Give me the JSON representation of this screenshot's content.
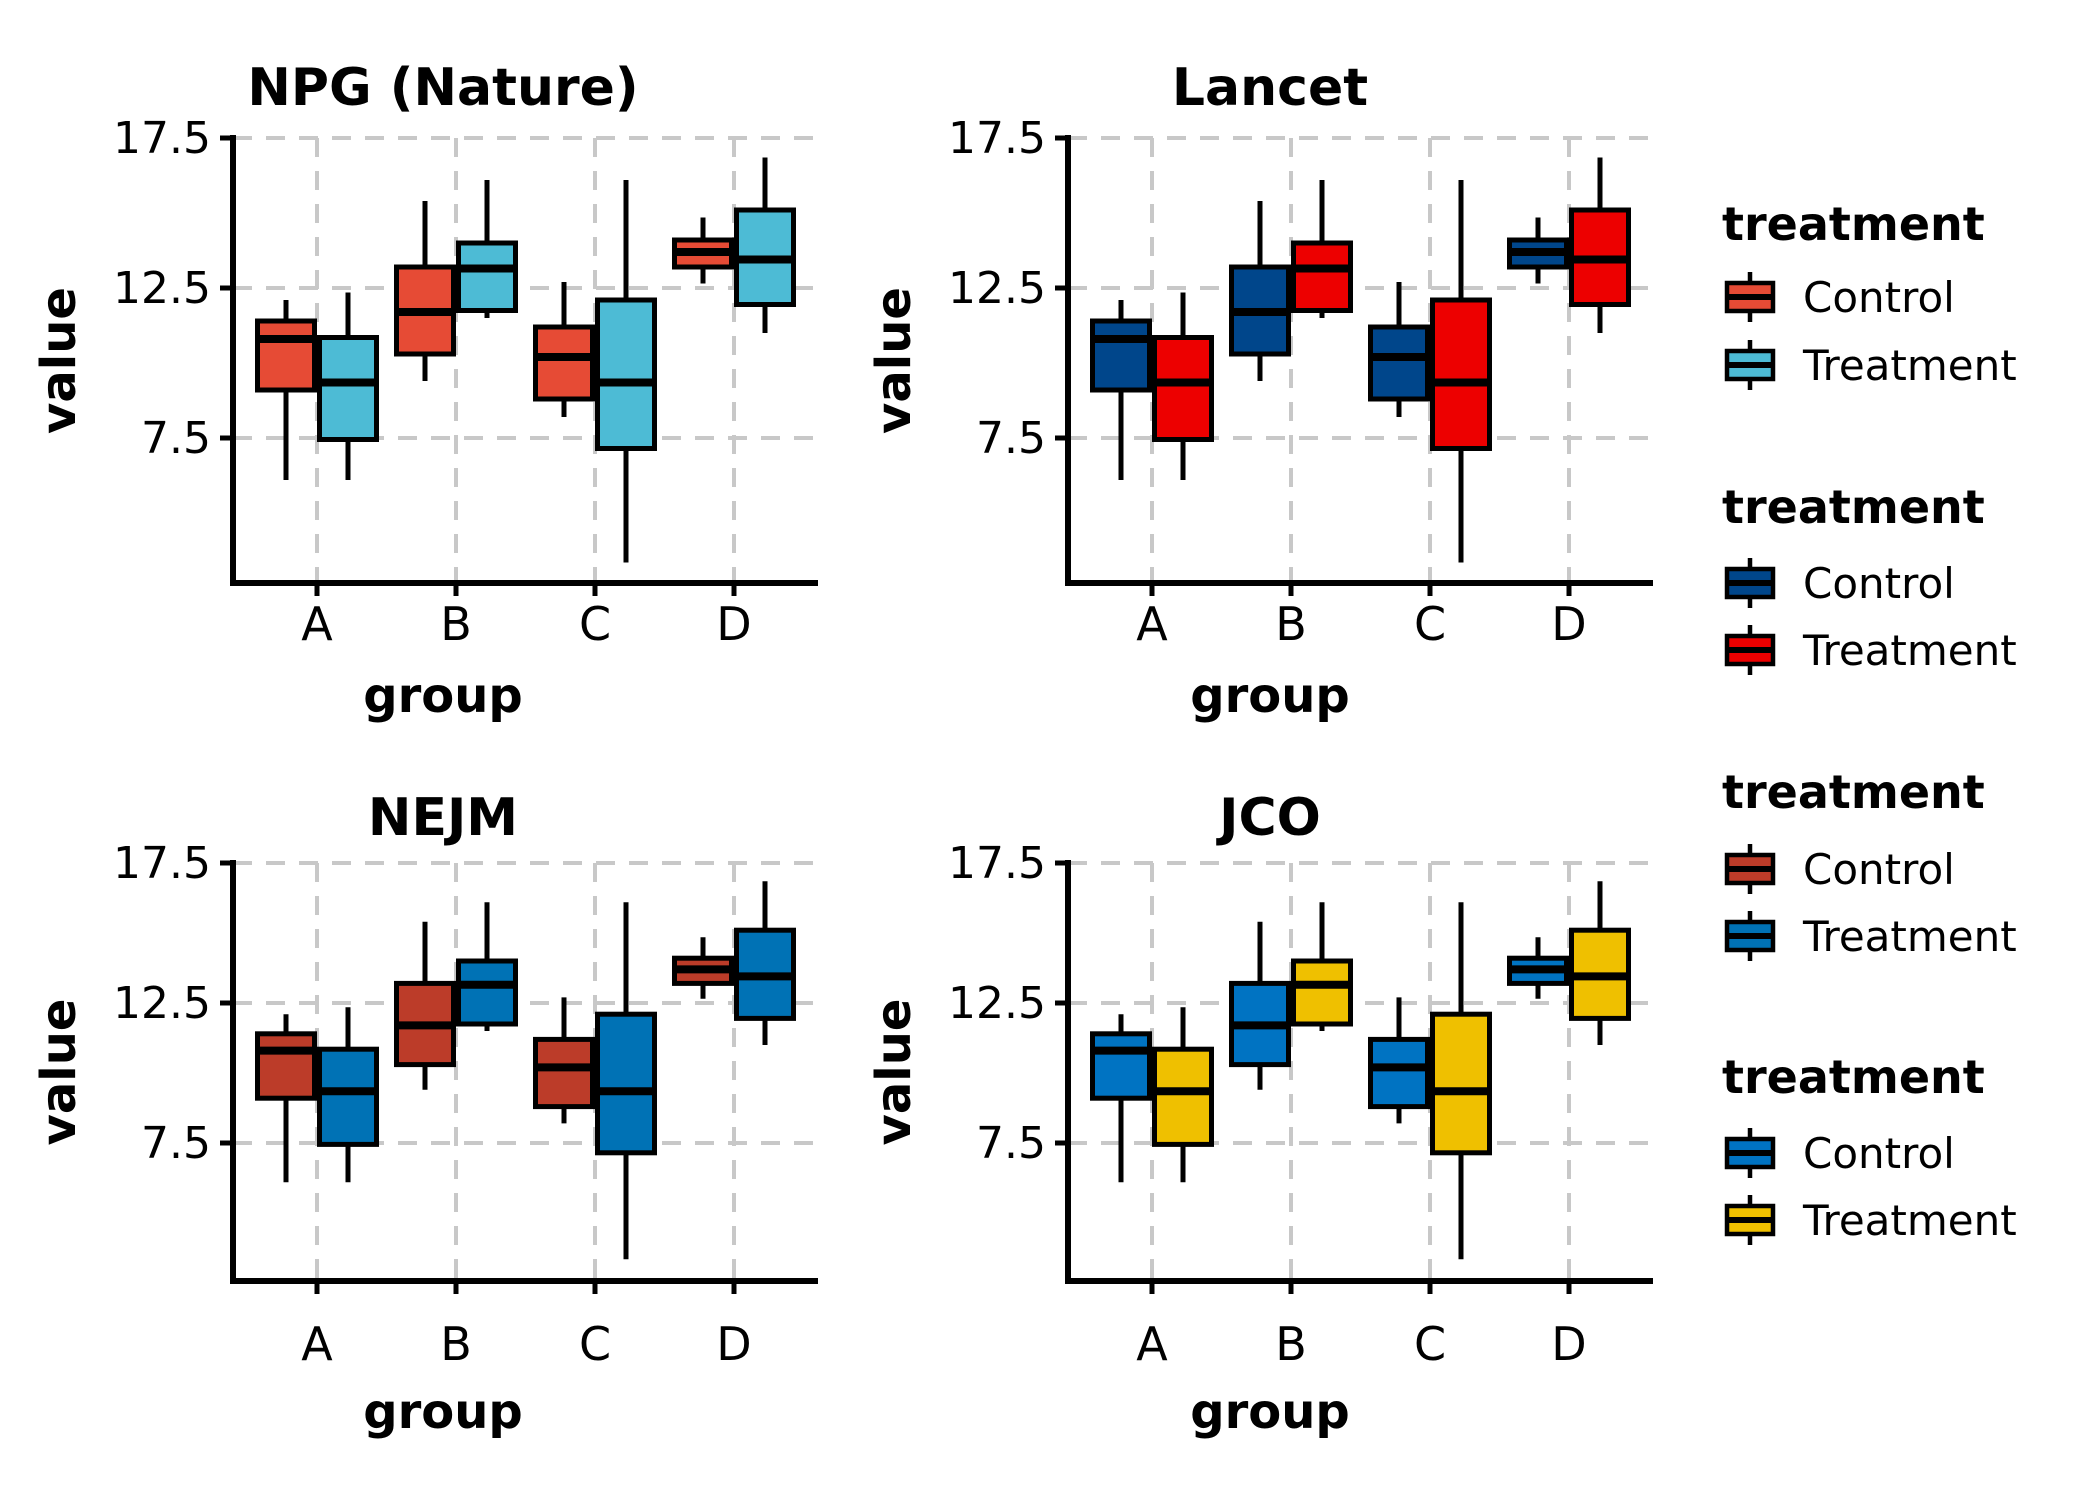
{
  "chart_data": {
    "type": "boxplot",
    "title": "",
    "xlabel": "group",
    "ylabel": "value",
    "categories": [
      "A",
      "B",
      "C",
      "D"
    ],
    "yticks": [
      17.5,
      12.5,
      7.5
    ],
    "ylim": [
      2.6,
      17.5
    ],
    "grid": "dashed-gray-both-axes",
    "grid_color": "#C8C8C8",
    "treatments": [
      "Control",
      "Treatment"
    ],
    "stats": {
      "Control": [
        {
          "group": "A",
          "whisker_low": 6.1,
          "q1": 9.1,
          "median": 10.8,
          "q3": 11.4,
          "whisker_high": 12.1
        },
        {
          "group": "B",
          "whisker_low": 9.4,
          "q1": 10.3,
          "median": 11.7,
          "q3": 13.2,
          "whisker_high": 15.4
        },
        {
          "group": "C",
          "whisker_low": 8.2,
          "q1": 8.8,
          "median": 10.2,
          "q3": 11.2,
          "whisker_high": 12.7
        },
        {
          "group": "D",
          "whisker_low": 12.65,
          "q1": 13.2,
          "median": 13.7,
          "q3": 14.1,
          "whisker_high": 14.85
        }
      ],
      "Treatment": [
        {
          "group": "A",
          "whisker_low": 6.1,
          "q1": 7.45,
          "median": 9.35,
          "q3": 10.85,
          "whisker_high": 12.35
        },
        {
          "group": "B",
          "whisker_low": 11.5,
          "q1": 11.75,
          "median": 13.15,
          "q3": 14.0,
          "whisker_high": 16.1
        },
        {
          "group": "C",
          "whisker_low": 3.35,
          "q1": 7.15,
          "median": 9.35,
          "q3": 12.1,
          "whisker_high": 16.1
        },
        {
          "group": "D",
          "whisker_low": 11.0,
          "q1": 11.95,
          "median": 13.45,
          "q3": 15.1,
          "whisker_high": 16.85
        }
      ]
    },
    "panels": [
      {
        "title": "NPG (Nature)",
        "colors": {
          "Control": "#E64B35",
          "Treatment": "#4DBBD5"
        }
      },
      {
        "title": "Lancet",
        "colors": {
          "Control": "#00468B",
          "Treatment": "#ED0000"
        }
      },
      {
        "title": "NEJM",
        "colors": {
          "Control": "#BC3C29",
          "Treatment": "#0072B5"
        }
      },
      {
        "title": "JCO",
        "colors": {
          "Control": "#0073C2",
          "Treatment": "#EFC000"
        }
      }
    ],
    "legends": [
      {
        "title": "treatment",
        "entries": [
          {
            "label": "Control",
            "color": "#E64B35"
          },
          {
            "label": "Treatment",
            "color": "#4DBBD5"
          }
        ]
      },
      {
        "title": "treatment",
        "entries": [
          {
            "label": "Control",
            "color": "#00468B"
          },
          {
            "label": "Treatment",
            "color": "#ED0000"
          }
        ]
      },
      {
        "title": "treatment",
        "entries": [
          {
            "label": "Control",
            "color": "#BC3C29"
          },
          {
            "label": "Treatment",
            "color": "#0072B5"
          }
        ]
      },
      {
        "title": "treatment",
        "entries": [
          {
            "label": "Control",
            "color": "#0073C2"
          },
          {
            "label": "Treatment",
            "color": "#EFC000"
          }
        ]
      }
    ]
  }
}
